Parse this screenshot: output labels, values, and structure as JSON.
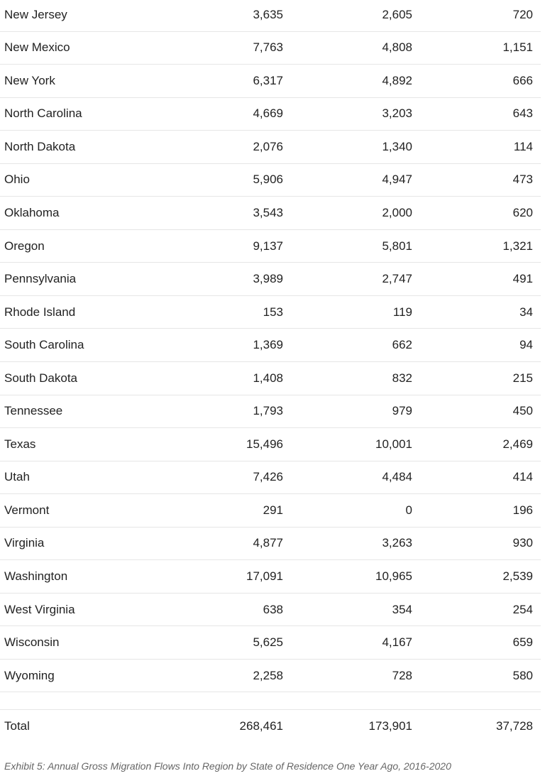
{
  "table": {
    "rows": [
      {
        "state": "New Jersey",
        "col1": "3,635",
        "col2": "2,605",
        "col3": "720"
      },
      {
        "state": "New Mexico",
        "col1": "7,763",
        "col2": "4,808",
        "col3": "1,151"
      },
      {
        "state": "New York",
        "col1": "6,317",
        "col2": "4,892",
        "col3": "666"
      },
      {
        "state": "North Carolina",
        "col1": "4,669",
        "col2": "3,203",
        "col3": "643"
      },
      {
        "state": "North Dakota",
        "col1": "2,076",
        "col2": "1,340",
        "col3": "114"
      },
      {
        "state": "Ohio",
        "col1": "5,906",
        "col2": "4,947",
        "col3": "473"
      },
      {
        "state": "Oklahoma",
        "col1": "3,543",
        "col2": "2,000",
        "col3": "620"
      },
      {
        "state": "Oregon",
        "col1": "9,137",
        "col2": "5,801",
        "col3": "1,321"
      },
      {
        "state": "Pennsylvania",
        "col1": "3,989",
        "col2": "2,747",
        "col3": "491"
      },
      {
        "state": "Rhode Island",
        "col1": "153",
        "col2": "119",
        "col3": "34"
      },
      {
        "state": "South Carolina",
        "col1": "1,369",
        "col2": "662",
        "col3": "94"
      },
      {
        "state": "South Dakota",
        "col1": "1,408",
        "col2": "832",
        "col3": "215"
      },
      {
        "state": "Tennessee",
        "col1": "1,793",
        "col2": "979",
        "col3": "450"
      },
      {
        "state": "Texas",
        "col1": "15,496",
        "col2": "10,001",
        "col3": "2,469"
      },
      {
        "state": "Utah",
        "col1": "7,426",
        "col2": "4,484",
        "col3": "414"
      },
      {
        "state": "Vermont",
        "col1": "291",
        "col2": "0",
        "col3": "196"
      },
      {
        "state": "Virginia",
        "col1": "4,877",
        "col2": "3,263",
        "col3": "930"
      },
      {
        "state": "Washington",
        "col1": "17,091",
        "col2": "10,965",
        "col3": "2,539"
      },
      {
        "state": "West Virginia",
        "col1": "638",
        "col2": "354",
        "col3": "254"
      },
      {
        "state": "Wisconsin",
        "col1": "5,625",
        "col2": "4,167",
        "col3": "659"
      },
      {
        "state": "Wyoming",
        "col1": "2,258",
        "col2": "728",
        "col3": "580"
      }
    ],
    "total": {
      "label": "Total",
      "col1": "268,461",
      "col2": "173,901",
      "col3": "37,728"
    }
  },
  "caption": "Exhibit 5: Annual Gross Migration Flows Into Region by State of Residence One Year Ago, 2016-2020"
}
